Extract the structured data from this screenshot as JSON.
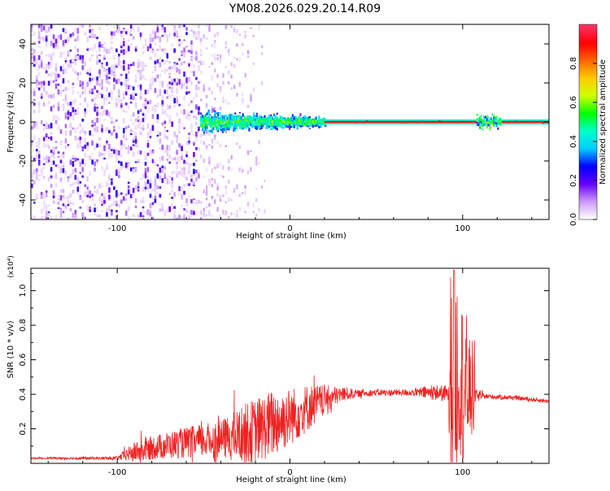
{
  "title": "YM08.2026.029.20.14.R09",
  "chart_data": [
    {
      "type": "heatmap",
      "xlabel": "Height of straight line (km)",
      "ylabel": "Frequency (Hz)",
      "xlim": [
        -150,
        150
      ],
      "ylim": [
        -50,
        50
      ],
      "xticks": [
        -100,
        0,
        100
      ],
      "yticks": [
        -40,
        -20,
        0,
        20,
        40
      ],
      "colorbar": {
        "label": "Normalized spectral amplitude",
        "range": [
          0,
          1
        ],
        "ticks": [
          0.0,
          0.2,
          0.4,
          0.6,
          0.8
        ],
        "colors": [
          "#ffffff",
          "#cc99ff",
          "#6600ff",
          "#0000ff",
          "#00ccff",
          "#00ffcc",
          "#00ff00",
          "#ccff00",
          "#ffcc00",
          "#ff6600",
          "#ff0000",
          "#ff3366"
        ]
      },
      "regions": [
        {
          "x": [
            -150,
            -52
          ],
          "freq_spread": 50,
          "amplitude": 0.15,
          "description": "broadband noise"
        },
        {
          "x": [
            -52,
            -15
          ],
          "freq_spread": 50,
          "amplitude": 0.05,
          "description": "sparse noise"
        },
        {
          "x": [
            -52,
            20
          ],
          "freq_spread": 8,
          "amplitude": 0.4
        },
        {
          "x": [
            20,
            150
          ],
          "freq_spread": 1,
          "amplitude": 0.9
        },
        {
          "x": [
            108,
            122
          ],
          "freq_spread": 6,
          "amplitude": 0.5
        }
      ]
    },
    {
      "type": "line",
      "xlabel": "Height of straight line (km)",
      "ylabel": "SNR (10 * v/v)",
      "y_multiplier": "(x10⁴)",
      "xlim": [
        -150,
        150
      ],
      "ylim": [
        0,
        1.13
      ],
      "xticks": [
        -100,
        0,
        100
      ],
      "yticks": [
        0.2,
        0.4,
        0.6,
        0.8,
        1.0
      ],
      "line_color": "#ee2222",
      "profile": [
        {
          "x": -150,
          "y": 0.03
        },
        {
          "x": -100,
          "y": 0.03
        },
        {
          "x": -95,
          "y": 0.05
        },
        {
          "x": -80,
          "y": 0.09
        },
        {
          "x": -60,
          "y": 0.12
        },
        {
          "x": -40,
          "y": 0.14
        },
        {
          "x": -30,
          "y": 0.16
        },
        {
          "x": -20,
          "y": 0.19
        },
        {
          "x": -10,
          "y": 0.23
        },
        {
          "x": 0,
          "y": 0.27
        },
        {
          "x": 10,
          "y": 0.32
        },
        {
          "x": 20,
          "y": 0.37
        },
        {
          "x": 30,
          "y": 0.4
        },
        {
          "x": 50,
          "y": 0.41
        },
        {
          "x": 70,
          "y": 0.41
        },
        {
          "x": 85,
          "y": 0.41
        },
        {
          "x": 92,
          "y": 0.4
        },
        {
          "x": 110,
          "y": 0.39
        },
        {
          "x": 130,
          "y": 0.38
        },
        {
          "x": 150,
          "y": 0.36
        }
      ],
      "noise_amplitude": [
        {
          "x": -150,
          "a": 0.005
        },
        {
          "x": -100,
          "a": 0.01
        },
        {
          "x": -90,
          "a": 0.06
        },
        {
          "x": -60,
          "a": 0.09
        },
        {
          "x": -40,
          "a": 0.11
        },
        {
          "x": -25,
          "a": 0.18
        },
        {
          "x": -10,
          "a": 0.2
        },
        {
          "x": 10,
          "a": 0.14
        },
        {
          "x": 25,
          "a": 0.06
        },
        {
          "x": 40,
          "a": 0.02
        },
        {
          "x": 70,
          "a": 0.02
        },
        {
          "x": 80,
          "a": 0.04
        },
        {
          "x": 90,
          "a": 0.05
        },
        {
          "x": 108,
          "a": 0.04
        },
        {
          "x": 112,
          "a": 0.015
        },
        {
          "x": 150,
          "a": 0.012
        }
      ],
      "burst": {
        "x": [
          92,
          107
        ],
        "peak_x": 95,
        "peak_y": 1.12,
        "min_y": 0.0
      }
    }
  ]
}
